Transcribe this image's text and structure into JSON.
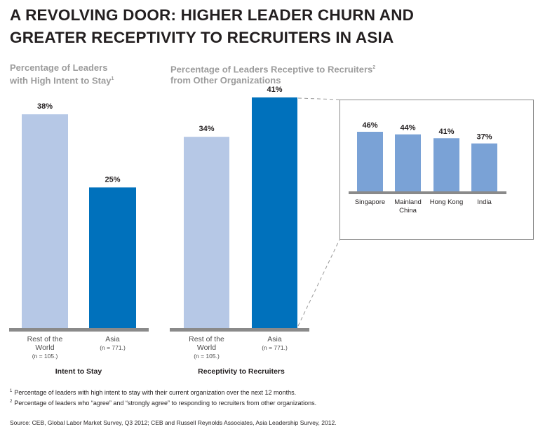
{
  "title_line1": "A REVOLVING DOOR: HIGHER LEADER CHURN AND",
  "title_line2": "GREATER RECEPTIVITY TO RECRUITERS IN ASIA",
  "footnotes": [
    {
      "mark": "1",
      "text": "Percentage of leaders with high intent to stay with their current organization over the next 12 months."
    },
    {
      "mark": "2",
      "text": "Percentage of leaders who “agree” and “strongly agree” to responding to recruiters from other organizations."
    }
  ],
  "source": "Source: CEB, Global Labor Market Survey, Q3 2012; CEB and Russell Reynolds Associates, Asia Leadership Survey, 2012.",
  "colors": {
    "light": "#b6c8e6",
    "dark": "#0071bc",
    "inset": "#7aa2d6",
    "axis": "#8a8a8a",
    "subtitle": "#9c9c9c"
  },
  "chart_data": [
    {
      "type": "bar",
      "title_line1": "Percentage of Leaders",
      "title_line2": "with High Intent to Stay",
      "title_mark": "1",
      "xlabel": "Intent to Stay",
      "categories": [
        {
          "line1": "Rest of the",
          "line2": "World",
          "n": "(n = 105.)"
        },
        {
          "line1": "Asia",
          "line2": "",
          "n": "(n = 771.)"
        }
      ],
      "values": [
        38,
        25
      ],
      "value_labels": [
        "38%",
        "25%"
      ],
      "ylim": [
        0,
        45
      ]
    },
    {
      "type": "bar",
      "title_line1": "Percentage of Leaders Receptive to Recruiters",
      "title_line2": "from Other Organizations",
      "title_mark": "2",
      "xlabel": "Receptivity to Recruiters",
      "categories": [
        {
          "line1": "Rest of the",
          "line2": "World",
          "n": "(n = 105.)"
        },
        {
          "line1": "Asia",
          "line2": "",
          "n": "(n = 771.)"
        }
      ],
      "values": [
        34,
        41
      ],
      "value_labels": [
        "34%",
        "41%"
      ],
      "ylim": [
        0,
        45
      ]
    },
    {
      "type": "bar",
      "categories": [
        {
          "line1": "Singapore",
          "line2": ""
        },
        {
          "line1": "Mainland",
          "line2": "China"
        },
        {
          "line1": "Hong Kong",
          "line2": ""
        },
        {
          "line1": "India",
          "line2": ""
        }
      ],
      "values": [
        46,
        44,
        41,
        37
      ],
      "value_labels": [
        "46%",
        "44%",
        "41%",
        "37%"
      ],
      "ylim": [
        0,
        50
      ]
    }
  ]
}
